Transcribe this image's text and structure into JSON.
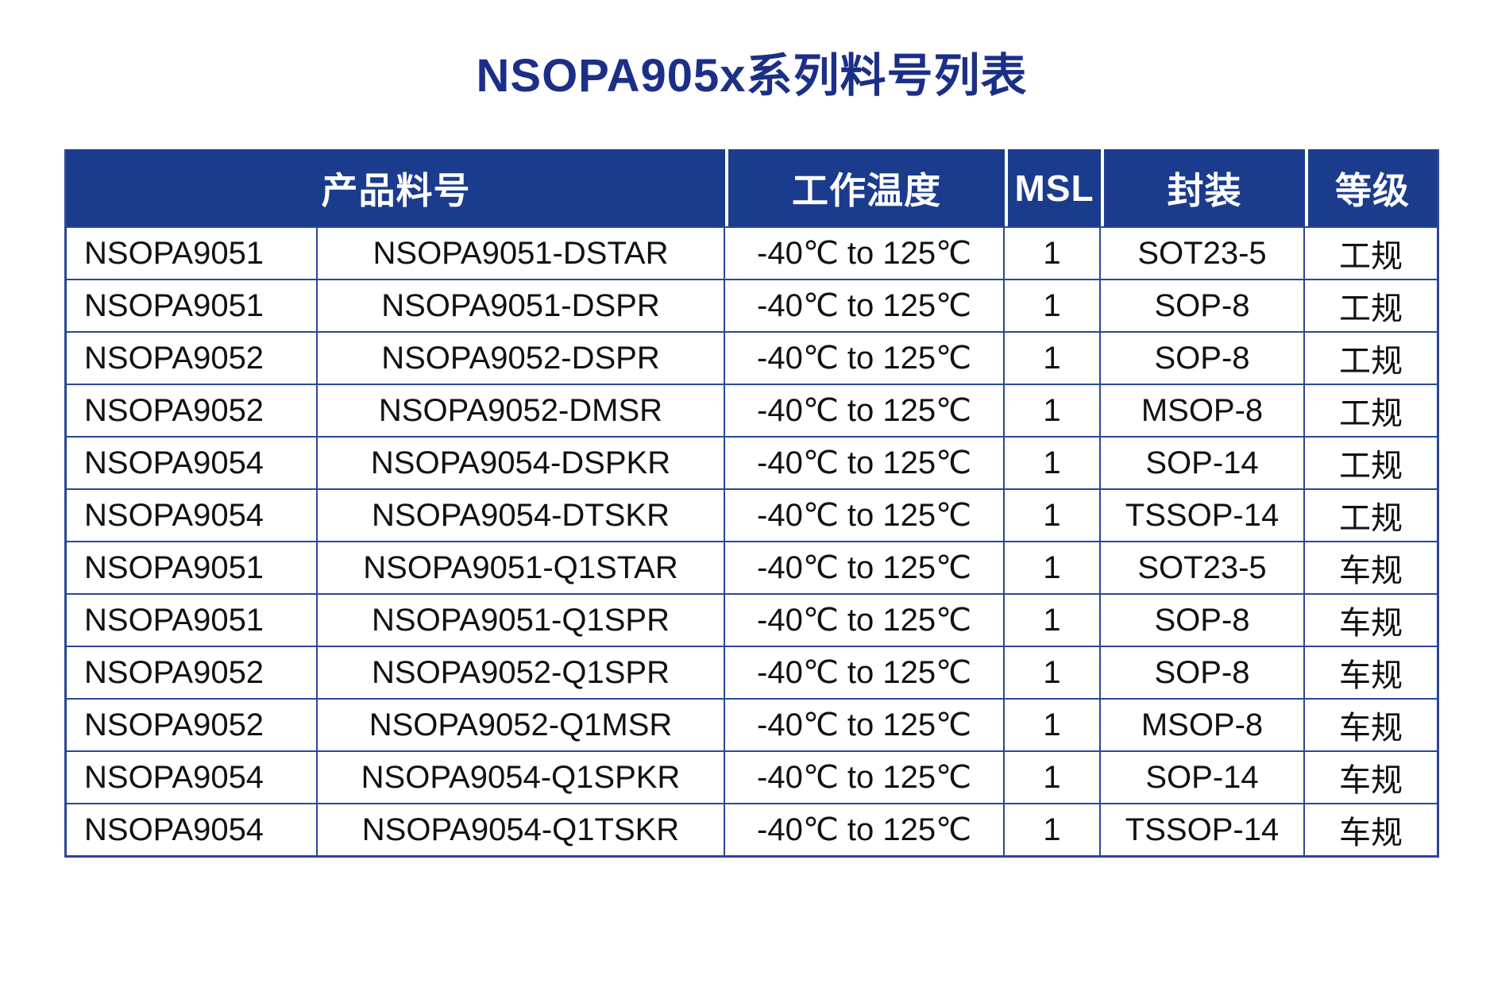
{
  "title": "NSOPA905x系列料号列表",
  "colors": {
    "title_text": "#1C2F87",
    "header_background": "#1B3B8C",
    "header_text": "#ffffff",
    "table_border": "#2B4796",
    "cell_text": "#111111",
    "page_background": "#ffffff"
  },
  "table": {
    "headers": [
      {
        "label": "产品料号",
        "span": 2
      },
      {
        "label": "工作温度",
        "span": 1
      },
      {
        "label": "MSL",
        "span": 1
      },
      {
        "label": "封装",
        "span": 1
      },
      {
        "label": "等级",
        "span": 1
      }
    ],
    "rows": [
      [
        "NSOPA9051",
        "NSOPA9051-DSTAR",
        "-40℃ to 125℃",
        "1",
        "SOT23-5",
        "工规"
      ],
      [
        "NSOPA9051",
        "NSOPA9051-DSPR",
        "-40℃ to 125℃",
        "1",
        "SOP-8",
        "工规"
      ],
      [
        "NSOPA9052",
        "NSOPA9052-DSPR",
        "-40℃ to 125℃",
        "1",
        "SOP-8",
        "工规"
      ],
      [
        "NSOPA9052",
        "NSOPA9052-DMSR",
        "-40℃ to 125℃",
        "1",
        "MSOP-8",
        "工规"
      ],
      [
        "NSOPA9054",
        "NSOPA9054-DSPKR",
        "-40℃ to 125℃",
        "1",
        "SOP-14",
        "工规"
      ],
      [
        "NSOPA9054",
        "NSOPA9054-DTSKR",
        "-40℃ to 125℃",
        "1",
        "TSSOP-14",
        "工规"
      ],
      [
        "NSOPA9051",
        "NSOPA9051-Q1STAR",
        "-40℃ to 125℃",
        "1",
        "SOT23-5",
        "车规"
      ],
      [
        "NSOPA9051",
        "NSOPA9051-Q1SPR",
        "-40℃ to 125℃",
        "1",
        "SOP-8",
        "车规"
      ],
      [
        "NSOPA9052",
        "NSOPA9052-Q1SPR",
        "-40℃ to 125℃",
        "1",
        "SOP-8",
        "车规"
      ],
      [
        "NSOPA9052",
        "NSOPA9052-Q1MSR",
        "-40℃ to 125℃",
        "1",
        "MSOP-8",
        "车规"
      ],
      [
        "NSOPA9054",
        "NSOPA9054-Q1SPKR",
        "-40℃ to 125℃",
        "1",
        "SOP-14",
        "车规"
      ],
      [
        "NSOPA9054",
        "NSOPA9054-Q1TSKR",
        "-40℃ to 125℃",
        "1",
        "TSSOP-14",
        "车规"
      ]
    ]
  }
}
